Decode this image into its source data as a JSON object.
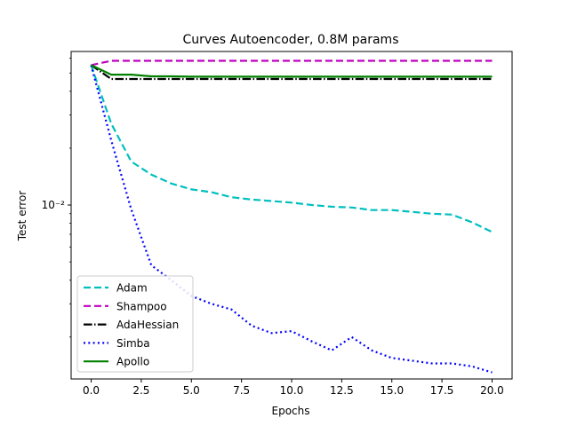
{
  "chart_data": {
    "type": "line",
    "title": "Curves Autoencoder, 0.8M params",
    "xlabel": "Epochs",
    "ylabel": "Test error",
    "xlim": [
      -1,
      21
    ],
    "ylim": [
      0.0012,
      0.065
    ],
    "y_scale": "log",
    "grid": false,
    "legend_position": "lower-left",
    "x_ticks": [
      0,
      2.5,
      5,
      7.5,
      10,
      12.5,
      15,
      17.5,
      20
    ],
    "x_tick_labels": [
      "0.0",
      "2.5",
      "5.0",
      "7.5",
      "10.0",
      "12.5",
      "15.0",
      "17.5",
      "20.0"
    ],
    "y_ticks": [
      0.01
    ],
    "y_tick_labels": [
      "10⁻²"
    ],
    "x": [
      0,
      1,
      2,
      3,
      4,
      5,
      6,
      7,
      8,
      9,
      10,
      11,
      12,
      13,
      14,
      15,
      16,
      17,
      18,
      19,
      20
    ],
    "series": [
      {
        "name": "Adam",
        "color": "#00bfbf",
        "dash": "dashed",
        "values": [
          0.055,
          0.027,
          0.017,
          0.0145,
          0.013,
          0.0121,
          0.0117,
          0.011,
          0.0107,
          0.0105,
          0.0103,
          0.01,
          0.0098,
          0.0097,
          0.0094,
          0.0094,
          0.0092,
          0.009,
          0.0089,
          0.0081,
          0.0072
        ]
      },
      {
        "name": "Shampoo",
        "color": "#bf00bf",
        "dash": "dashed",
        "values": [
          0.055,
          0.058,
          0.058,
          0.058,
          0.058,
          0.058,
          0.058,
          0.058,
          0.058,
          0.058,
          0.058,
          0.058,
          0.058,
          0.058,
          0.058,
          0.058,
          0.058,
          0.058,
          0.058,
          0.058,
          0.058
        ]
      },
      {
        "name": "AdaHessian",
        "color": "#000000",
        "dash": "dashdot",
        "values": [
          0.055,
          0.0465,
          0.0465,
          0.0465,
          0.0465,
          0.0465,
          0.0465,
          0.0465,
          0.0465,
          0.0465,
          0.0465,
          0.0465,
          0.0465,
          0.0465,
          0.0465,
          0.0465,
          0.0465,
          0.0465,
          0.0465,
          0.0465,
          0.0465
        ]
      },
      {
        "name": "Simba",
        "color": "#0000ff",
        "dash": "dotted",
        "values": [
          0.055,
          0.022,
          0.0095,
          0.0048,
          0.004,
          0.0033,
          0.003,
          0.0028,
          0.0023,
          0.0021,
          0.00215,
          0.0019,
          0.0017,
          0.002,
          0.0017,
          0.00155,
          0.0015,
          0.00145,
          0.00145,
          0.0014,
          0.0013
        ]
      },
      {
        "name": "Apollo",
        "color": "#008000",
        "dash": "solid",
        "values": [
          0.055,
          0.049,
          0.049,
          0.048,
          0.048,
          0.0478,
          0.0478,
          0.0478,
          0.0478,
          0.0478,
          0.0478,
          0.0478,
          0.0478,
          0.0478,
          0.0478,
          0.0478,
          0.0478,
          0.0478,
          0.0478,
          0.0478,
          0.0478
        ]
      }
    ]
  }
}
